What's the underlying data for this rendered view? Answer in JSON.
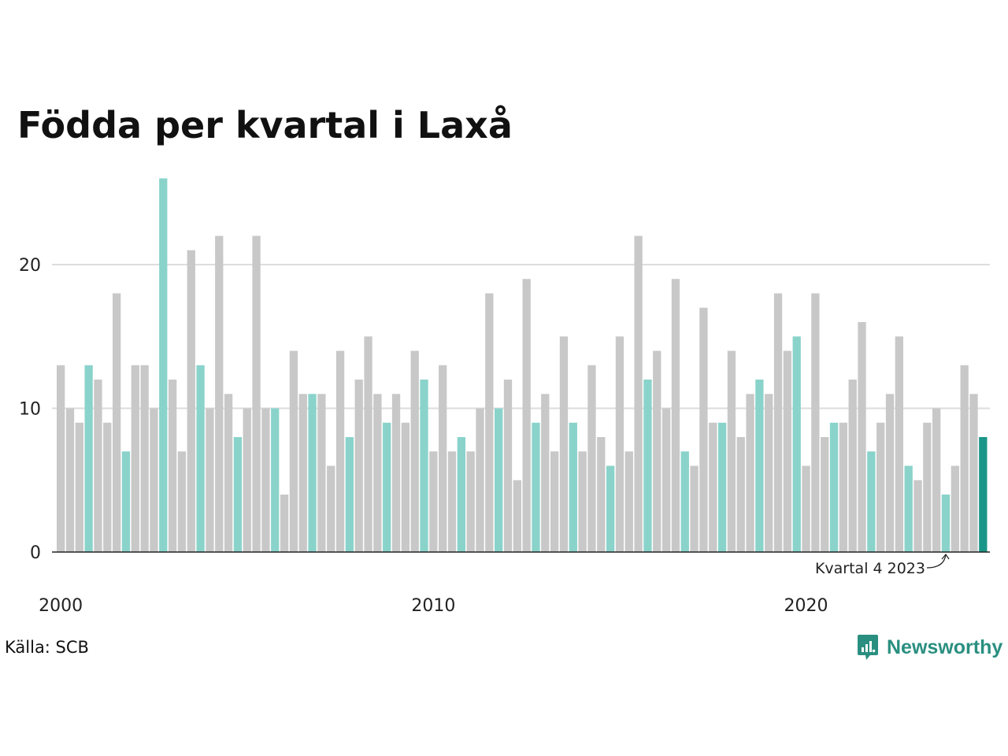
{
  "chart_data": {
    "type": "bar",
    "title": "Födda per kvartal i Laxå",
    "xlabel": "",
    "ylabel": "",
    "ylim": [
      0,
      26
    ],
    "yticks": [
      0,
      10,
      20
    ],
    "grid": true,
    "x_tick_labels": [
      "2000",
      "2010",
      "2020"
    ],
    "categories": [
      "2000 Q1",
      "2000 Q2",
      "2000 Q3",
      "2000 Q4",
      "2001 Q1",
      "2001 Q2",
      "2001 Q3",
      "2001 Q4",
      "2002 Q1",
      "2002 Q2",
      "2002 Q3",
      "2002 Q4",
      "2003 Q1",
      "2003 Q2",
      "2003 Q3",
      "2003 Q4",
      "2004 Q1",
      "2004 Q2",
      "2004 Q3",
      "2004 Q4",
      "2005 Q1",
      "2005 Q2",
      "2005 Q3",
      "2005 Q4",
      "2006 Q1",
      "2006 Q2",
      "2006 Q3",
      "2006 Q4",
      "2007 Q1",
      "2007 Q2",
      "2007 Q3",
      "2007 Q4",
      "2008 Q1",
      "2008 Q2",
      "2008 Q3",
      "2008 Q4",
      "2009 Q1",
      "2009 Q2",
      "2009 Q3",
      "2009 Q4",
      "2010 Q1",
      "2010 Q2",
      "2010 Q3",
      "2010 Q4",
      "2011 Q1",
      "2011 Q2",
      "2011 Q3",
      "2011 Q4",
      "2012 Q1",
      "2012 Q2",
      "2012 Q3",
      "2012 Q4",
      "2013 Q1",
      "2013 Q2",
      "2013 Q3",
      "2013 Q4",
      "2014 Q1",
      "2014 Q2",
      "2014 Q3",
      "2014 Q4",
      "2015 Q1",
      "2015 Q2",
      "2015 Q3",
      "2015 Q4",
      "2016 Q1",
      "2016 Q2",
      "2016 Q3",
      "2016 Q4",
      "2017 Q1",
      "2017 Q2",
      "2017 Q3",
      "2017 Q4",
      "2018 Q1",
      "2018 Q2",
      "2018 Q3",
      "2018 Q4",
      "2019 Q1",
      "2019 Q2",
      "2019 Q3",
      "2019 Q4",
      "2020 Q1",
      "2020 Q2",
      "2020 Q3",
      "2020 Q4",
      "2021 Q1",
      "2021 Q2",
      "2021 Q3",
      "2021 Q4",
      "2022 Q1",
      "2022 Q2",
      "2022 Q3",
      "2022 Q4",
      "2023 Q1",
      "2023 Q2",
      "2023 Q3",
      "2023 Q4",
      "2024 Q1",
      "2024 Q2",
      "2024 Q3",
      "2024 Q4"
    ],
    "values": [
      13,
      10,
      9,
      13,
      12,
      9,
      18,
      7,
      13,
      13,
      10,
      26,
      12,
      7,
      21,
      13,
      10,
      22,
      11,
      8,
      10,
      22,
      10,
      10,
      4,
      14,
      11,
      11,
      11,
      6,
      14,
      8,
      12,
      15,
      11,
      9,
      11,
      9,
      14,
      12,
      7,
      13,
      7,
      8,
      7,
      10,
      18,
      10,
      12,
      5,
      19,
      9,
      11,
      7,
      15,
      9,
      7,
      13,
      8,
      6,
      15,
      7,
      22,
      12,
      14,
      10,
      19,
      7,
      6,
      17,
      9,
      9,
      14,
      8,
      11,
      12,
      11,
      18,
      14,
      15,
      6,
      18,
      8,
      9,
      9,
      12,
      16,
      7,
      9,
      11,
      15,
      6,
      5,
      9,
      10,
      4,
      6,
      13,
      11,
      8
    ],
    "highlight_quarter": "Q4",
    "colors": {
      "default_bar": "#c8c8c8",
      "highlight_bar": "#8ad3cb",
      "latest_bar": "#1a9688",
      "grid": "#dddddd",
      "axis": "#222222"
    },
    "annotation": {
      "label": "Kvartal 4 2023",
      "target": "2023 Q4"
    }
  },
  "source": "Källa: SCB",
  "brand": {
    "name": "Newsworthy",
    "color": "#2a8f80",
    "icon": "newsworthy-logo-icon"
  }
}
